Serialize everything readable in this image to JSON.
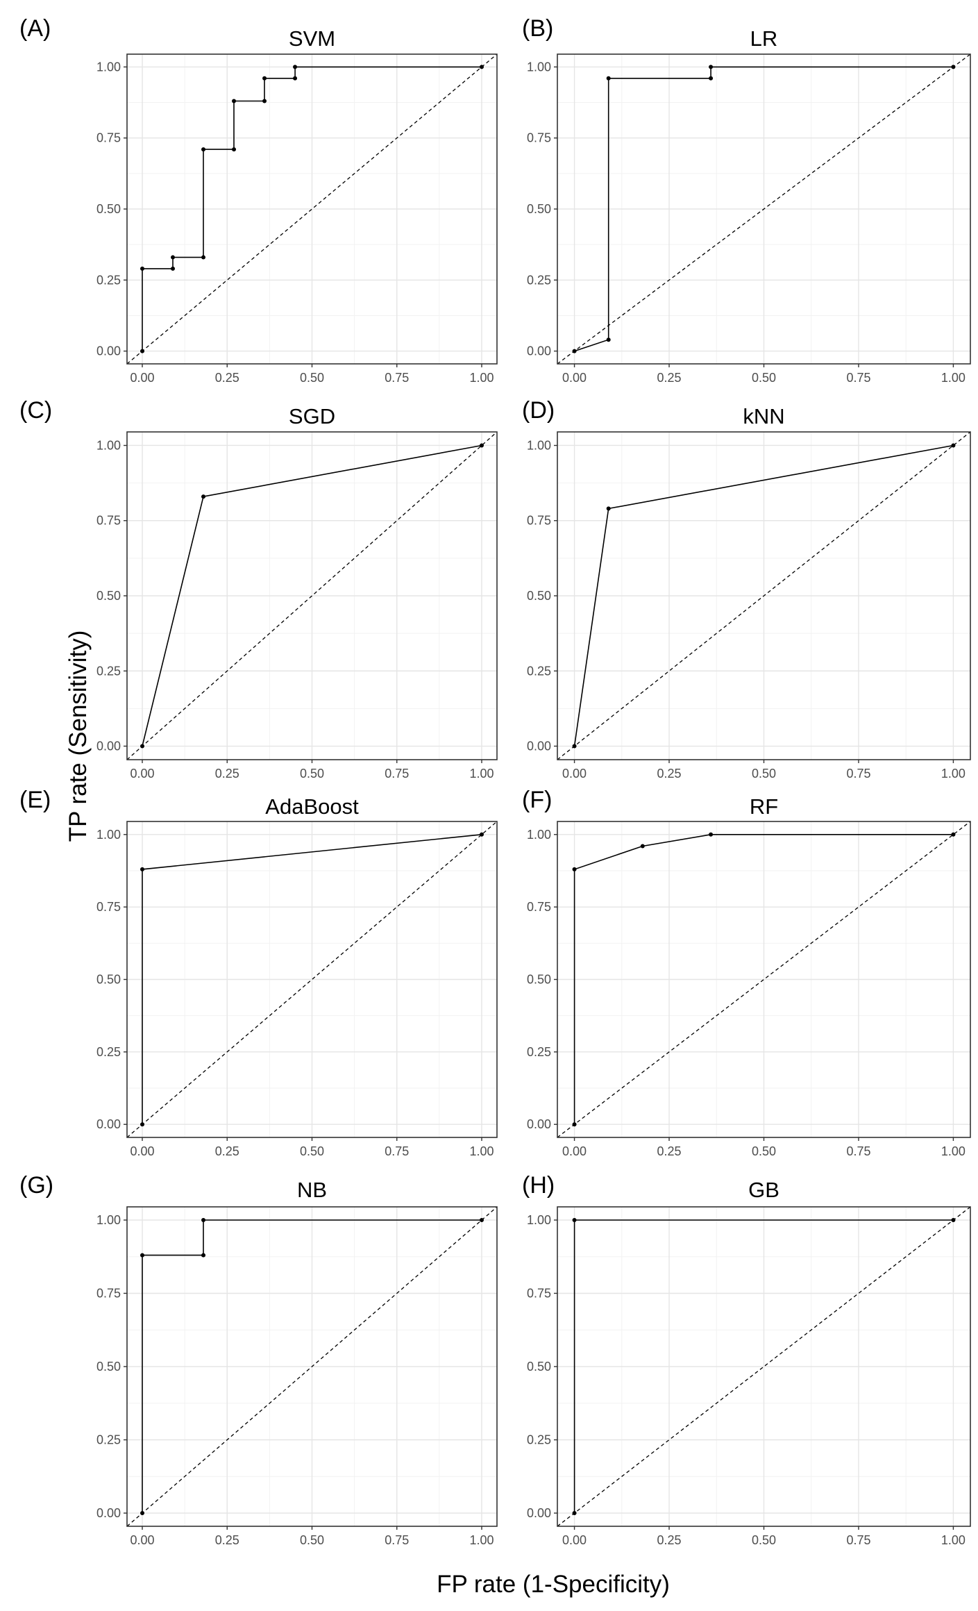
{
  "figure": {
    "ylabel": "TP rate (Sensitivity)",
    "xlabel": "FP rate (1-Specificity)"
  },
  "chart_data": [
    {
      "type": "line",
      "panel": "(A)",
      "title": "SVM",
      "x": [
        0.0,
        0.0,
        0.09,
        0.09,
        0.18,
        0.18,
        0.27,
        0.27,
        0.36,
        0.36,
        0.45,
        0.45,
        1.0
      ],
      "y": [
        0.0,
        0.29,
        0.29,
        0.33,
        0.33,
        0.71,
        0.71,
        0.88,
        0.88,
        0.96,
        0.96,
        1.0,
        1.0
      ],
      "xlim": [
        0,
        1
      ],
      "ylim": [
        0,
        1
      ],
      "xticks": [
        "0.00",
        "0.25",
        "0.50",
        "0.75",
        "1.00"
      ],
      "yticks": [
        "0.00",
        "0.25",
        "0.50",
        "0.75",
        "1.00"
      ],
      "reference_line": "diagonal-dashed",
      "grid": true
    },
    {
      "type": "line",
      "panel": "(B)",
      "title": "LR",
      "x": [
        0.0,
        0.09,
        0.09,
        0.36,
        0.36,
        1.0
      ],
      "y": [
        0.0,
        0.04,
        0.96,
        0.96,
        1.0,
        1.0
      ],
      "xlim": [
        0,
        1
      ],
      "ylim": [
        0,
        1
      ],
      "xticks": [
        "0.00",
        "0.25",
        "0.50",
        "0.75",
        "1.00"
      ],
      "yticks": [
        "0.00",
        "0.25",
        "0.50",
        "0.75",
        "1.00"
      ],
      "reference_line": "diagonal-dashed",
      "grid": true
    },
    {
      "type": "line",
      "panel": "(C)",
      "title": "SGD",
      "x": [
        0.0,
        0.18,
        1.0
      ],
      "y": [
        0.0,
        0.83,
        1.0
      ],
      "xlim": [
        0,
        1
      ],
      "ylim": [
        0,
        1
      ],
      "xticks": [
        "0.00",
        "0.25",
        "0.50",
        "0.75",
        "1.00"
      ],
      "yticks": [
        "0.00",
        "0.25",
        "0.50",
        "0.75",
        "1.00"
      ],
      "reference_line": "diagonal-dashed",
      "grid": true
    },
    {
      "type": "line",
      "panel": "(D)",
      "title": "kNN",
      "x": [
        0.0,
        0.09,
        1.0
      ],
      "y": [
        0.0,
        0.79,
        1.0
      ],
      "xlim": [
        0,
        1
      ],
      "ylim": [
        0,
        1
      ],
      "xticks": [
        "0.00",
        "0.25",
        "0.50",
        "0.75",
        "1.00"
      ],
      "yticks": [
        "0.00",
        "0.25",
        "0.50",
        "0.75",
        "1.00"
      ],
      "reference_line": "diagonal-dashed",
      "grid": true
    },
    {
      "type": "line",
      "panel": "(E)",
      "title": "AdaBoost",
      "x": [
        0.0,
        0.0,
        1.0
      ],
      "y": [
        0.0,
        0.88,
        1.0
      ],
      "xlim": [
        0,
        1
      ],
      "ylim": [
        0,
        1
      ],
      "xticks": [
        "0.00",
        "0.25",
        "0.50",
        "0.75",
        "1.00"
      ],
      "yticks": [
        "0.00",
        "0.25",
        "0.50",
        "0.75",
        "1.00"
      ],
      "reference_line": "diagonal-dashed",
      "grid": true
    },
    {
      "type": "line",
      "panel": "(F)",
      "title": "RF",
      "x": [
        0.0,
        0.0,
        0.18,
        0.36,
        1.0
      ],
      "y": [
        0.0,
        0.88,
        0.96,
        1.0,
        1.0
      ],
      "xlim": [
        0,
        1
      ],
      "ylim": [
        0,
        1
      ],
      "xticks": [
        "0.00",
        "0.25",
        "0.50",
        "0.75",
        "1.00"
      ],
      "yticks": [
        "0.00",
        "0.25",
        "0.50",
        "0.75",
        "1.00"
      ],
      "reference_line": "diagonal-dashed",
      "grid": true
    },
    {
      "type": "line",
      "panel": "(G)",
      "title": "NB",
      "x": [
        0.0,
        0.0,
        0.18,
        0.18,
        1.0
      ],
      "y": [
        0.0,
        0.88,
        0.88,
        1.0,
        1.0
      ],
      "xlim": [
        0,
        1
      ],
      "ylim": [
        0,
        1
      ],
      "xticks": [
        "0.00",
        "0.25",
        "0.50",
        "0.75",
        "1.00"
      ],
      "yticks": [
        "0.00",
        "0.25",
        "0.50",
        "0.75",
        "1.00"
      ],
      "reference_line": "diagonal-dashed",
      "grid": true
    },
    {
      "type": "line",
      "panel": "(H)",
      "title": "GB",
      "x": [
        0.0,
        0.0,
        1.0
      ],
      "y": [
        0.0,
        1.0,
        1.0
      ],
      "xlim": [
        0,
        1
      ],
      "ylim": [
        0,
        1
      ],
      "xticks": [
        "0.00",
        "0.25",
        "0.50",
        "0.75",
        "1.00"
      ],
      "yticks": [
        "0.00",
        "0.25",
        "0.50",
        "0.75",
        "1.00"
      ],
      "reference_line": "diagonal-dashed",
      "grid": true
    }
  ]
}
